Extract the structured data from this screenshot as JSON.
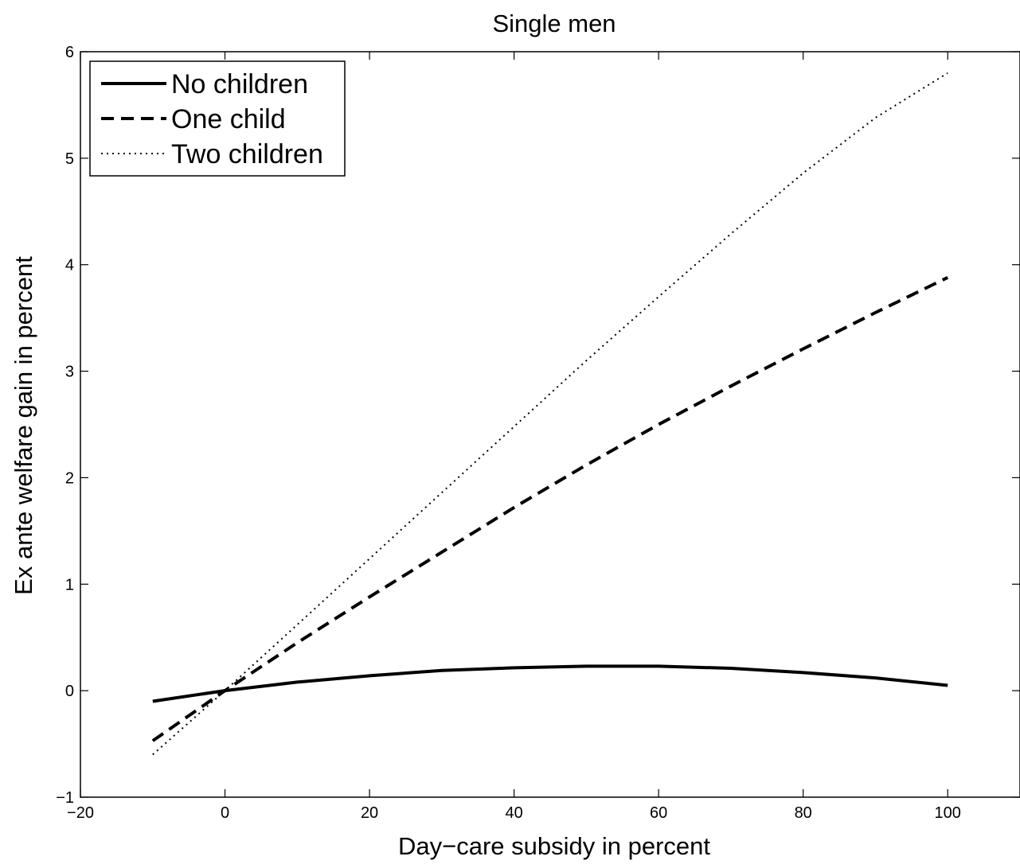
{
  "chart_data": {
    "type": "line",
    "title": "Single men",
    "xlabel": "Day−care subsidy in percent",
    "ylabel": "Ex ante welfare gain in percent",
    "xlim": [
      -20,
      110
    ],
    "ylim": [
      -1,
      6
    ],
    "xticks": [
      -20,
      0,
      20,
      40,
      60,
      80,
      100
    ],
    "xtick_labels": [
      "−20",
      "0",
      "20",
      "40",
      "60",
      "80",
      "100"
    ],
    "yticks": [
      -1,
      0,
      1,
      2,
      3,
      4,
      5,
      6
    ],
    "ytick_labels": [
      "−1",
      "0",
      "1",
      "2",
      "3",
      "4",
      "5",
      "6"
    ],
    "grid": false,
    "legend_position": "top-left",
    "series": [
      {
        "name": "No children",
        "style": "solid",
        "color": "#000000",
        "x": [
          -10,
          0,
          10,
          20,
          30,
          40,
          50,
          60,
          70,
          80,
          90,
          100
        ],
        "y": [
          -0.1,
          0.0,
          0.08,
          0.14,
          0.19,
          0.215,
          0.23,
          0.23,
          0.21,
          0.17,
          0.12,
          0.05
        ]
      },
      {
        "name": "One child",
        "style": "dashed",
        "color": "#000000",
        "x": [
          -10,
          0,
          10,
          20,
          30,
          40,
          50,
          60,
          70,
          80,
          90,
          100
        ],
        "y": [
          -0.47,
          0.0,
          0.45,
          0.88,
          1.3,
          1.72,
          2.12,
          2.5,
          2.86,
          3.21,
          3.55,
          3.88
        ]
      },
      {
        "name": "Two children",
        "style": "dotted",
        "color": "#000000",
        "x": [
          -10,
          0,
          10,
          20,
          30,
          40,
          50,
          60,
          70,
          80,
          90,
          100
        ],
        "y": [
          -0.6,
          0.0,
          0.62,
          1.24,
          1.86,
          2.48,
          3.1,
          3.7,
          4.29,
          4.86,
          5.38,
          5.8
        ]
      }
    ]
  }
}
